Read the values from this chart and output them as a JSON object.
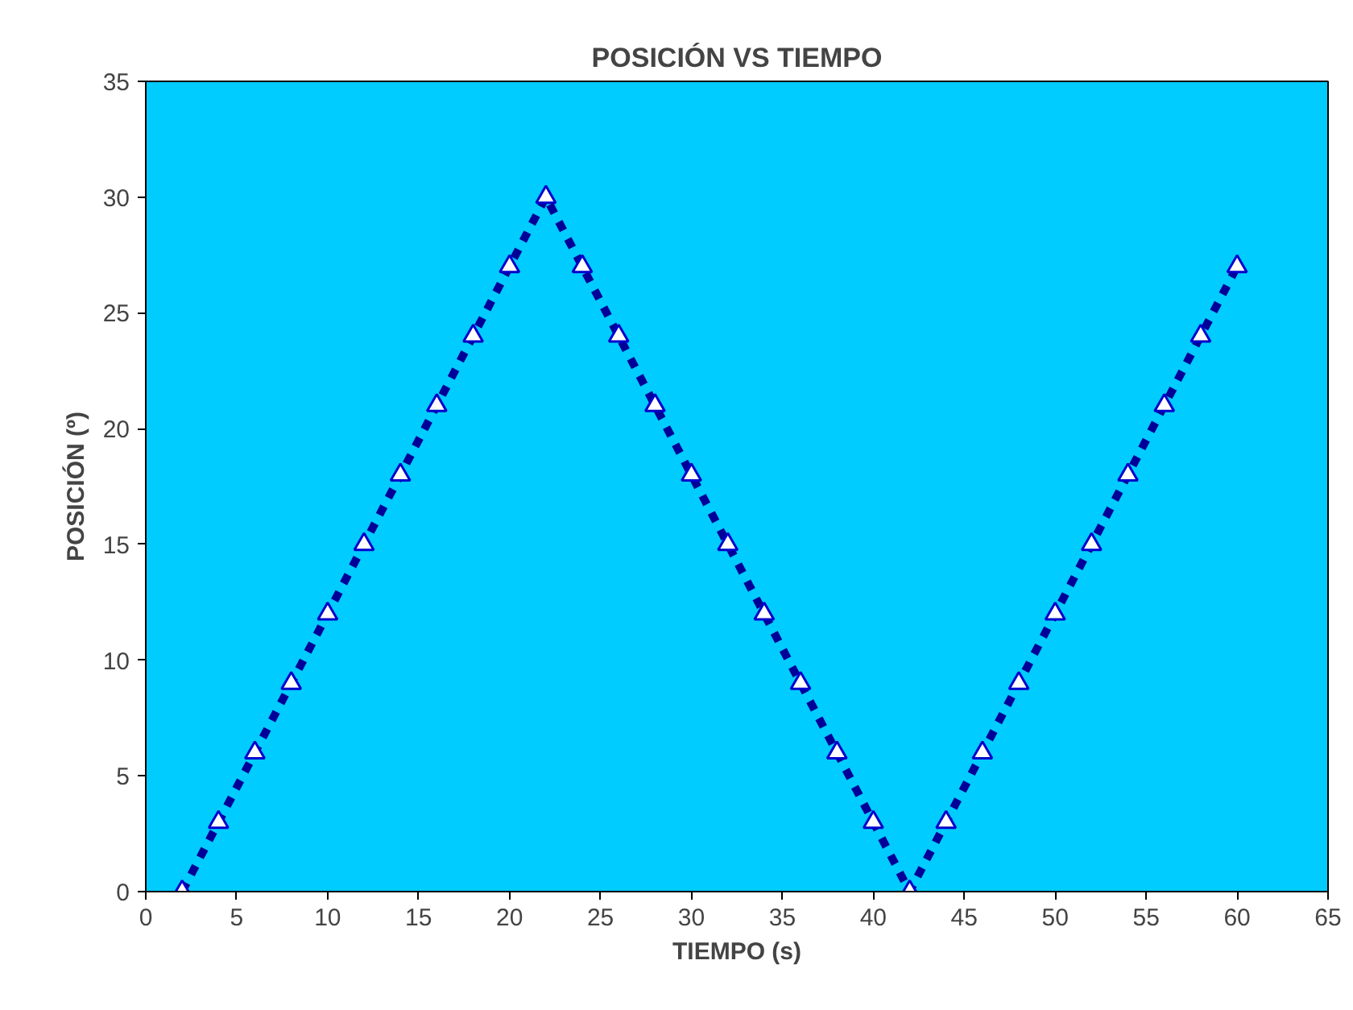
{
  "chart_data": {
    "type": "line",
    "title": "POSICIÓN VS TIEMPO",
    "xlabel": "TIEMPO (s)",
    "ylabel": "POSICIÓN (º)",
    "x": [
      2,
      4,
      6,
      8,
      10,
      12,
      14,
      16,
      18,
      20,
      22,
      24,
      26,
      28,
      30,
      32,
      34,
      36,
      38,
      40,
      42,
      44,
      46,
      48,
      50,
      52,
      54,
      56,
      58,
      60
    ],
    "series": [
      {
        "color": "#000099",
        "values": [
          0,
          3,
          6,
          9,
          12,
          15,
          18,
          21,
          24,
          27,
          30,
          27,
          24,
          21,
          18,
          15,
          12,
          9,
          6,
          3,
          0,
          3,
          6,
          9,
          12,
          15,
          18,
          21,
          24,
          27
        ]
      }
    ],
    "xlim": [
      0,
      65
    ],
    "xticks": [
      0,
      5,
      10,
      15,
      20,
      25,
      30,
      35,
      40,
      45,
      50,
      55,
      60,
      65
    ],
    "ylim": [
      0,
      35
    ],
    "yticks": [
      0,
      5,
      10,
      15,
      20,
      25,
      30,
      35
    ],
    "grid": false,
    "marker": "triangle",
    "line_style": "dashed"
  }
}
